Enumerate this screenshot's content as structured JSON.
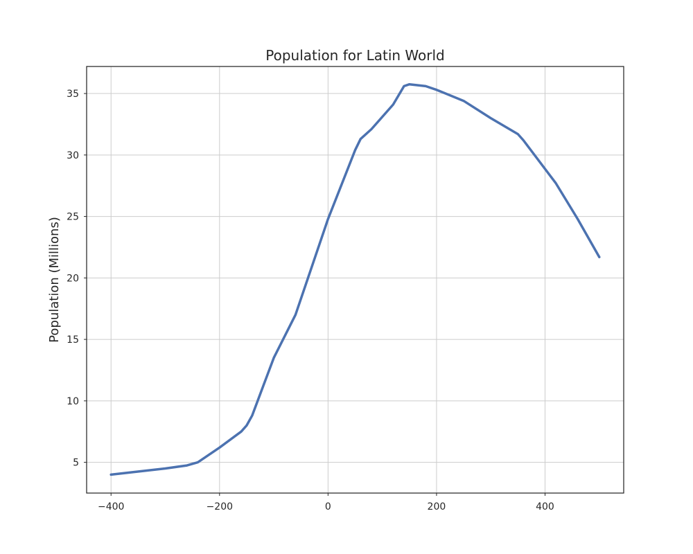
{
  "chart_data": {
    "type": "line",
    "title": "Population for Latin World",
    "xlabel": "",
    "ylabel": "Population (Millions)",
    "xlim": [
      -445,
      545
    ],
    "ylim": [
      2.5,
      37.2
    ],
    "x_ticks": [
      -400,
      -200,
      0,
      200,
      400
    ],
    "x_tick_labels": [
      "−400",
      "−200",
      "0",
      "200",
      "400"
    ],
    "y_ticks": [
      5,
      10,
      15,
      20,
      25,
      30,
      35
    ],
    "y_tick_labels": [
      "5",
      "10",
      "15",
      "20",
      "25",
      "30",
      "35"
    ],
    "grid": true,
    "legend": "none",
    "colors": {
      "series": "#4c72b0",
      "grid": "#cccccc",
      "frame": "#262626"
    },
    "series": [
      {
        "x": [
          -400,
          -300,
          -260,
          -240,
          -200,
          -160,
          -150,
          -140,
          -100,
          -60,
          0,
          50,
          60,
          80,
          120,
          140,
          150,
          180,
          200,
          250,
          300,
          350,
          360,
          420,
          460,
          500
        ],
        "values": [
          4.0,
          4.5,
          4.75,
          5.0,
          6.2,
          7.5,
          8.0,
          8.8,
          13.5,
          17.0,
          24.8,
          30.4,
          31.3,
          32.1,
          34.1,
          35.6,
          35.75,
          35.6,
          35.3,
          34.4,
          33.0,
          31.7,
          31.2,
          27.7,
          24.8,
          21.7
        ]
      }
    ]
  }
}
